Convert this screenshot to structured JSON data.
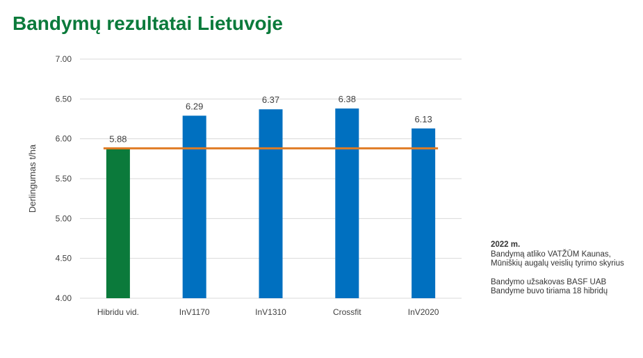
{
  "title": "Bandymų rezultatai Lietuvoje",
  "colors": {
    "title": "#0b7a3b",
    "average_bar": "#0b7a3b",
    "bar": "#0070c0",
    "average_line": "#e07b24",
    "grid": "#d9d9d9",
    "text": "#404040"
  },
  "chart_data": {
    "type": "bar",
    "categories": [
      "Hibridu vid.",
      "InV1170",
      "InV1310",
      "Crossfit",
      "InV2020"
    ],
    "values": [
      5.88,
      6.29,
      6.37,
      6.38,
      6.13
    ],
    "value_labels": [
      "5.88",
      "6.29",
      "6.37",
      "6.38",
      "6.13"
    ],
    "ylabel": "Derlingumas t/ha",
    "xlabel": "",
    "ylim": [
      4.0,
      7.0
    ],
    "yticks": [
      4.0,
      4.5,
      5.0,
      5.5,
      6.0,
      6.5,
      7.0
    ],
    "ytick_labels": [
      "4.00",
      "4.50",
      "5.00",
      "5.50",
      "6.00",
      "6.50",
      "7.00"
    ],
    "average_line": 5.88,
    "grid": true
  },
  "note": {
    "year": "2022 m.",
    "lines1": [
      "Bandymą atliko VATŽŪM Kaunas,",
      "Mūniškių augalų veislių tyrimo skyrius"
    ],
    "lines2": [
      "Bandymo užsakovas BASF UAB",
      "Bandyme buvo tiriama 18 hibridų"
    ]
  }
}
